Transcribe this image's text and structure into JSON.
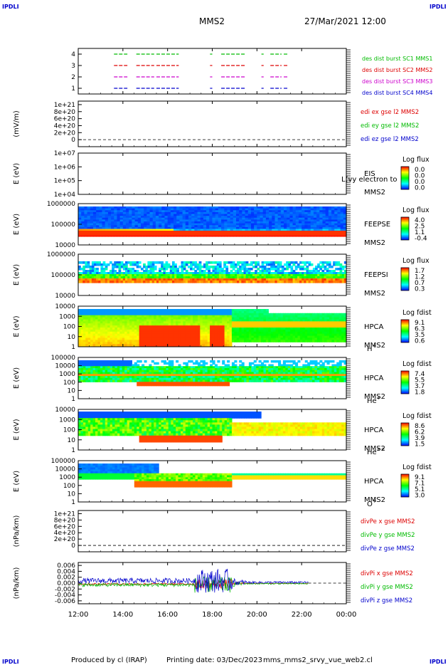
{
  "header": {
    "corner_tl": "IPDLI",
    "corner_tr": "IPDLI",
    "corner_bl": "IPDLI",
    "corner_br": "IPDLI",
    "spacecraft": "MMS2",
    "datetime": "27/Mar/2021 12:00"
  },
  "footer": {
    "produced_by": "Produced by cl (IRAP)",
    "printing_date": "Printing date: 03/Dec/2023",
    "script_name": "mms_mms2_srvy_vue_web2.cl"
  },
  "colors": {
    "red": "#dd0000",
    "green": "#00bb00",
    "blue": "#0000cc",
    "magenta": "#cc00cc",
    "orange_red": "#ff3300"
  },
  "chart_data": [
    {
      "type": "line",
      "id": "burst",
      "ylabel": "",
      "yticks": [
        "1",
        "2",
        "3",
        "4"
      ],
      "ylim": [
        0.5,
        4.5
      ],
      "x_ticks": [
        "12:00",
        "14:00",
        "16:00",
        "18:00",
        "20:00",
        "22:00",
        "00:00"
      ],
      "series": [
        {
          "name": "des dist burst SC1 MMS1",
          "color": "#00bb00",
          "y": 4,
          "intervals": [
            [
              13.6,
              14.2
            ],
            [
              14.6,
              15.4
            ],
            [
              15.5,
              16.5
            ],
            [
              17.9,
              18.0
            ],
            [
              18.4,
              19.5
            ],
            [
              20.2,
              20.3
            ],
            [
              20.6,
              21.1
            ],
            [
              21.2,
              21.4
            ]
          ]
        },
        {
          "name": "des dist burst SC2 MMS2",
          "color": "#dd0000",
          "y": 3,
          "intervals": [
            [
              13.6,
              14.2
            ],
            [
              14.6,
              15.4
            ],
            [
              15.5,
              16.5
            ],
            [
              17.9,
              18.0
            ],
            [
              18.4,
              19.5
            ],
            [
              20.2,
              20.3
            ],
            [
              20.6,
              21.1
            ],
            [
              21.2,
              21.4
            ]
          ]
        },
        {
          "name": "des dist burst SC3 MMS3",
          "color": "#cc00cc",
          "y": 2,
          "intervals": [
            [
              13.6,
              14.2
            ],
            [
              14.6,
              15.4
            ],
            [
              15.5,
              16.5
            ],
            [
              17.9,
              18.0
            ],
            [
              18.4,
              19.5
            ],
            [
              20.2,
              20.3
            ],
            [
              20.6,
              21.1
            ],
            [
              21.2,
              21.4
            ]
          ]
        },
        {
          "name": "des dist burst SC4 MMS4",
          "color": "#0000cc",
          "y": 1,
          "intervals": [
            [
              13.6,
              14.2
            ],
            [
              14.6,
              15.4
            ],
            [
              15.5,
              16.5
            ],
            [
              17.9,
              18.0
            ],
            [
              18.4,
              19.5
            ],
            [
              20.2,
              20.3
            ],
            [
              20.6,
              21.1
            ],
            [
              21.2,
              21.4
            ]
          ]
        }
      ]
    },
    {
      "type": "line",
      "id": "edi",
      "ylabel": "(mV/m)",
      "yticks": [
        "0",
        "2e+20",
        "4e+20",
        "6e+20",
        "8e+20",
        "1e+21"
      ],
      "ylim": [
        -2e+20,
        1.1e+21
      ],
      "legend": [
        {
          "name": "edi ex gse l2 MMS2",
          "color": "#dd0000"
        },
        {
          "name": "edi ey gse l2 MMS2",
          "color": "#00bb00"
        },
        {
          "name": "edi ez gse l2 MMS2",
          "color": "#0000cc"
        }
      ]
    },
    {
      "type": "heatmap",
      "id": "eis",
      "ylabel": "E (eV)",
      "yticks": [
        "1e+04",
        "1e+05",
        "1e+06",
        "1e+07"
      ],
      "label_lines": [
        "EIS",
        "MMS2"
      ],
      "overlay_text": "L(vy electron to",
      "cbar_title": "Log flux",
      "cbar_ticks": [
        "0.0",
        "0.0",
        "0.0",
        "0.0"
      ]
    },
    {
      "type": "heatmap",
      "id": "feepse",
      "ylabel": "E (eV)",
      "yticks": [
        "10000",
        "100000",
        "1000000"
      ],
      "label_lines": [
        "FEEPSE",
        "MMS2"
      ],
      "cbar_title": "Log flux",
      "cbar_ticks": [
        "4.0",
        "2.5",
        "1.1",
        "-0.4"
      ]
    },
    {
      "type": "heatmap",
      "id": "feepsi",
      "ylabel": "E (eV)",
      "yticks": [
        "10000",
        "100000",
        "1000000"
      ],
      "label_lines": [
        "FEEPSI",
        "MMS2"
      ],
      "cbar_title": "Log flux",
      "cbar_ticks": [
        "1.7",
        "1.2",
        "0.7",
        "0.3"
      ]
    },
    {
      "type": "heatmap",
      "id": "hpca_h",
      "ylabel": "E (eV)",
      "yticks": [
        "1",
        "10",
        "100",
        "1000",
        "10000"
      ],
      "label_lines": [
        "HPCA",
        "MMS2"
      ],
      "species": "H",
      "species_sup": "+",
      "cbar_title": "Log fdist",
      "cbar_ticks": [
        "9.1",
        "6.3",
        "3.5",
        "0.6"
      ]
    },
    {
      "type": "heatmap",
      "id": "hpca_he",
      "ylabel": "E (eV)",
      "yticks": [
        "1",
        "10",
        "100",
        "1000",
        "10000",
        "100000"
      ],
      "label_lines": [
        "HPCA",
        "MMS2"
      ],
      "species": "He",
      "species_sup": "+",
      "cbar_title": "Log fdist",
      "cbar_ticks": [
        "7.4",
        "5.5",
        "3.7",
        "1.8"
      ]
    },
    {
      "type": "heatmap",
      "id": "hpca_hepp",
      "ylabel": "E (eV)",
      "yticks": [
        "1",
        "10",
        "100",
        "1000",
        "10000"
      ],
      "label_lines": [
        "HPCA",
        "MMS2"
      ],
      "species": "He",
      "species_sup": "++",
      "cbar_title": "Log fdist",
      "cbar_ticks": [
        "8.6",
        "6.2",
        "3.9",
        "1.5"
      ]
    },
    {
      "type": "heatmap",
      "id": "hpca_o",
      "ylabel": "E (eV)",
      "yticks": [
        "1",
        "10",
        "100",
        "1000",
        "10000",
        "100000"
      ],
      "label_lines": [
        "HPCA",
        "MMS2"
      ],
      "species": "O",
      "species_sup": "+",
      "cbar_title": "Log fdist",
      "cbar_ticks": [
        "9.1",
        "7.1",
        "5.1",
        "3.0"
      ]
    },
    {
      "type": "line",
      "id": "divpe",
      "ylabel": "(nPa/km)",
      "yticks": [
        "0",
        "2e+20",
        "4e+20",
        "6e+20",
        "8e+20",
        "1e+21"
      ],
      "ylim": [
        -2e+20,
        1.1e+21
      ],
      "legend": [
        {
          "name": "divPe x gse MMS2",
          "color": "#dd0000"
        },
        {
          "name": "divPe y gse MMS2",
          "color": "#00bb00"
        },
        {
          "name": "divPe z gse MMS2",
          "color": "#0000cc"
        }
      ]
    },
    {
      "type": "line",
      "id": "divpi",
      "ylabel": "(nPa/km)",
      "yticks": [
        "-0.006",
        "-0.004",
        "-0.002",
        "0.000",
        "0.002",
        "0.004",
        "0.006"
      ],
      "ylim": [
        -0.007,
        0.007
      ],
      "legend": [
        {
          "name": "divPi x gse MMS2",
          "color": "#dd0000"
        },
        {
          "name": "divPi y gse MMS2",
          "color": "#00bb00"
        },
        {
          "name": "divPi z gse MMS2",
          "color": "#0000cc"
        }
      ]
    }
  ]
}
